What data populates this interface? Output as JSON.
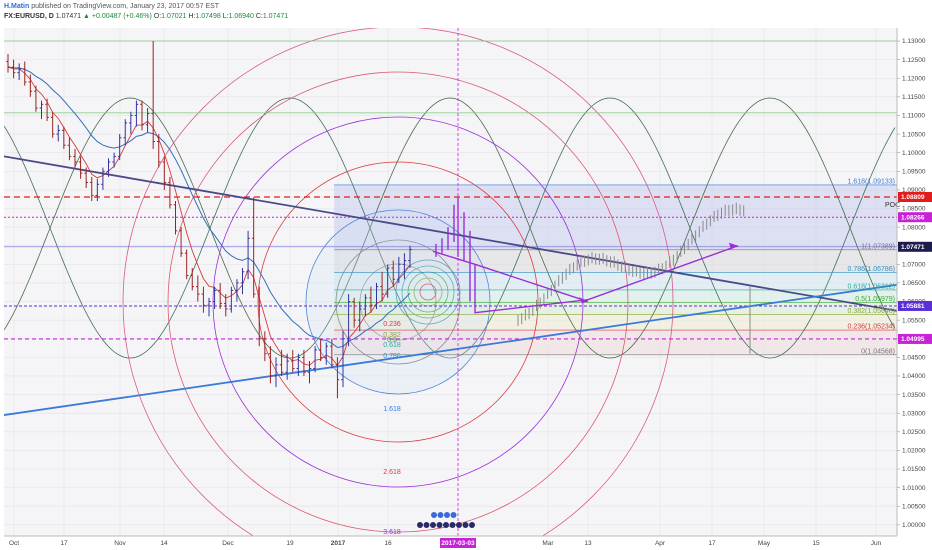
{
  "header": {
    "author": "H.Matin",
    "published": "published on TradingView.com, January 23, 2017 00:57 EST",
    "symbol": "FX:EURUSD, D",
    "last": "1.07471",
    "change_arrow": "▲",
    "change": "+0.00487 (+0.46%)",
    "o_label": "O:",
    "o_value": "1.07021",
    "h_label": "H:",
    "h_value": "1.07498",
    "l_label": "L:",
    "l_value": "1.06940",
    "c_label": "C:",
    "c_value": "1.07471"
  },
  "colors": {
    "background": "#ffffff",
    "plot_bg": "#f5f5f7",
    "bull": "#3434a0",
    "bear": "#9a2222",
    "ema_fast": "#d83a3a",
    "ema_slow": "#2f6fc0",
    "trend_up": "#3a7ad8",
    "trend_down": "#4a4a8a",
    "purple": "#9a2fd8",
    "red_level": "#e21b1b",
    "magenta_level": "#c822d6"
  },
  "chart_data": {
    "type": "candlestick",
    "x_tick_labels": [
      "Oct",
      "17",
      "Nov",
      "14",
      "Dec",
      "19",
      "2017",
      "16",
      "Mar",
      "13",
      "Apr",
      "17",
      "May",
      "15",
      "Jun"
    ],
    "x_cursor_label": "2017-03-03",
    "y_axis_ticks": [
      "1.13000",
      "1.12500",
      "1.12000",
      "1.11500",
      "1.11000",
      "1.10500",
      "1.10000",
      "1.09500",
      "1.09000",
      "1.08500",
      "1.08000",
      "1.07500",
      "1.07000",
      "1.06500",
      "1.06000",
      "1.05500",
      "1.05000",
      "1.04500",
      "1.04000",
      "1.03500",
      "1.03000",
      "1.02500",
      "1.02000",
      "1.01500",
      "1.01000",
      "1.00500",
      "1.00000"
    ],
    "y_range": [
      0.997,
      1.1335
    ],
    "price_badges": [
      {
        "label": "1.08809",
        "value": 1.08809,
        "color": "#e21b1b"
      },
      {
        "label": "1.08266",
        "value": 1.08266,
        "color": "#c822d6"
      },
      {
        "label": "1.07471",
        "value": 1.07471,
        "color": "#1d1d4d"
      },
      {
        "label": "1.05881",
        "value": 1.05881,
        "color": "#5a2fd8"
      },
      {
        "label": "1.04995",
        "value": 1.04995,
        "color": "#c822d6"
      }
    ],
    "fib_retracement": [
      {
        "label": "1.618(1.09133)",
        "value": 1.09133,
        "color": "#3a7ad8"
      },
      {
        "label": "1(1.07389)",
        "value": 1.07389,
        "color": "#777777"
      },
      {
        "label": "0.786(1.06786)",
        "value": 1.06786,
        "color": "#2f8fbf"
      },
      {
        "label": "0.618(1.06312)",
        "value": 1.06312,
        "color": "#2fa8a0"
      },
      {
        "label": "0.5(1.05979)",
        "value": 1.05979,
        "color": "#3aa83a"
      },
      {
        "label": "0.382(1.05646)",
        "value": 1.05646,
        "color": "#8aa83a"
      },
      {
        "label": "0.236(1.05234)",
        "value": 1.05234,
        "color": "#d83a3a"
      },
      {
        "label": "0(1.04568)",
        "value": 1.04568,
        "color": "#777777"
      }
    ],
    "poc_label": "POC",
    "fib_circle_labels": [
      {
        "label": "0.236",
        "color": "#d83a3a"
      },
      {
        "label": "0.382",
        "color": "#8aa83a"
      },
      {
        "label": "0.5",
        "color": "#3aa83a"
      },
      {
        "label": "0.618",
        "color": "#2fa8a0"
      },
      {
        "label": "0.786",
        "color": "#2f8fbf"
      },
      {
        "label": "1.618",
        "color": "#3a7ad8"
      },
      {
        "label": "2.618",
        "color": "#d83a3a"
      },
      {
        "label": "3.618",
        "color": "#9a2fd8"
      }
    ],
    "candles_note": "daily EURUSD candles Oct 2016 – Jan 2017",
    "candles": [
      [
        1.1245,
        1.1265,
        1.1215,
        1.123
      ],
      [
        1.123,
        1.125,
        1.12,
        1.1215
      ],
      [
        1.1215,
        1.124,
        1.1195,
        1.1225
      ],
      [
        1.1225,
        1.1245,
        1.118,
        1.119
      ],
      [
        1.119,
        1.121,
        1.115,
        1.1165
      ],
      [
        1.1165,
        1.118,
        1.111,
        1.112
      ],
      [
        1.112,
        1.114,
        1.109,
        1.113
      ],
      [
        1.113,
        1.1145,
        1.1085,
        1.1095
      ],
      [
        1.1095,
        1.111,
        1.104,
        1.105
      ],
      [
        1.105,
        1.1075,
        1.103,
        1.106
      ],
      [
        1.106,
        1.107,
        1.101,
        1.102
      ],
      [
        1.102,
        1.104,
        1.098,
        1.099
      ],
      [
        1.099,
        1.101,
        1.096,
        1.0975
      ],
      [
        1.0975,
        1.099,
        1.093,
        1.0945
      ],
      [
        1.0945,
        1.096,
        1.0905,
        1.092
      ],
      [
        1.092,
        1.0935,
        1.087,
        1.0885
      ],
      [
        1.0885,
        1.093,
        1.087,
        1.0915
      ],
      [
        1.0915,
        1.096,
        1.09,
        1.095
      ],
      [
        1.095,
        1.0985,
        1.0935,
        1.0975
      ],
      [
        1.0975,
        1.1,
        1.096,
        1.099
      ],
      [
        1.099,
        1.105,
        1.098,
        1.104
      ],
      [
        1.104,
        1.109,
        1.102,
        1.108
      ],
      [
        1.108,
        1.111,
        1.105,
        1.11
      ],
      [
        1.11,
        1.114,
        1.107,
        1.113
      ],
      [
        1.113,
        1.114,
        1.106,
        1.1075
      ],
      [
        1.1075,
        1.112,
        1.1055,
        1.1105
      ],
      [
        1.1105,
        1.13,
        1.101,
        1.103
      ],
      [
        1.103,
        1.105,
        1.096,
        1.0975
      ],
      [
        1.0975,
        1.099,
        1.09,
        1.092
      ],
      [
        1.092,
        1.0935,
        1.085,
        1.086
      ],
      [
        1.086,
        1.087,
        1.078,
        1.079
      ],
      [
        1.079,
        1.08,
        1.072,
        1.073
      ],
      [
        1.073,
        1.074,
        1.066,
        1.067
      ],
      [
        1.067,
        1.069,
        1.063,
        1.064
      ],
      [
        1.064,
        1.067,
        1.06,
        1.062
      ],
      [
        1.062,
        1.064,
        1.057,
        1.059
      ],
      [
        1.059,
        1.061,
        1.056,
        1.06
      ],
      [
        1.06,
        1.064,
        1.058,
        1.063
      ],
      [
        1.063,
        1.065,
        1.058,
        1.0595
      ],
      [
        1.0595,
        1.062,
        1.056,
        1.058
      ],
      [
        1.058,
        1.064,
        1.057,
        1.063
      ],
      [
        1.063,
        1.066,
        1.06,
        1.065
      ],
      [
        1.065,
        1.069,
        1.062,
        1.068
      ],
      [
        1.068,
        1.079,
        1.066,
        1.077
      ],
      [
        1.077,
        1.088,
        1.061,
        1.062
      ],
      [
        1.062,
        1.064,
        1.048,
        1.05
      ],
      [
        1.05,
        1.052,
        1.044,
        1.046
      ],
      [
        1.046,
        1.048,
        1.038,
        1.04
      ],
      [
        1.04,
        1.045,
        1.037,
        1.043
      ],
      [
        1.043,
        1.047,
        1.04,
        1.041
      ],
      [
        1.041,
        1.046,
        1.039,
        1.044
      ],
      [
        1.044,
        1.047,
        1.041,
        1.042
      ],
      [
        1.042,
        1.046,
        1.04,
        1.045
      ],
      [
        1.045,
        1.047,
        1.04,
        1.041
      ],
      [
        1.041,
        1.044,
        1.038,
        1.042
      ],
      [
        1.042,
        1.048,
        1.041,
        1.047
      ],
      [
        1.047,
        1.05,
        1.044,
        1.045
      ],
      [
        1.045,
        1.049,
        1.043,
        1.048
      ],
      [
        1.048,
        1.05,
        1.042,
        1.043
      ],
      [
        1.043,
        1.045,
        1.034,
        1.039
      ],
      [
        1.039,
        1.052,
        1.037,
        1.05
      ],
      [
        1.05,
        1.062,
        1.048,
        1.06
      ],
      [
        1.06,
        1.061,
        1.053,
        1.055
      ],
      [
        1.055,
        1.06,
        1.052,
        1.058
      ],
      [
        1.058,
        1.062,
        1.056,
        1.061
      ],
      [
        1.061,
        1.064,
        1.057,
        1.059
      ],
      [
        1.059,
        1.065,
        1.058,
        1.064
      ],
      [
        1.064,
        1.068,
        1.06,
        1.062
      ],
      [
        1.062,
        1.07,
        1.061,
        1.069
      ],
      [
        1.069,
        1.071,
        1.064,
        1.066
      ],
      [
        1.066,
        1.072,
        1.065,
        1.07
      ],
      [
        1.07,
        1.073,
        1.066,
        1.071
      ],
      [
        1.071,
        1.075,
        1.069,
        1.074
      ]
    ]
  }
}
